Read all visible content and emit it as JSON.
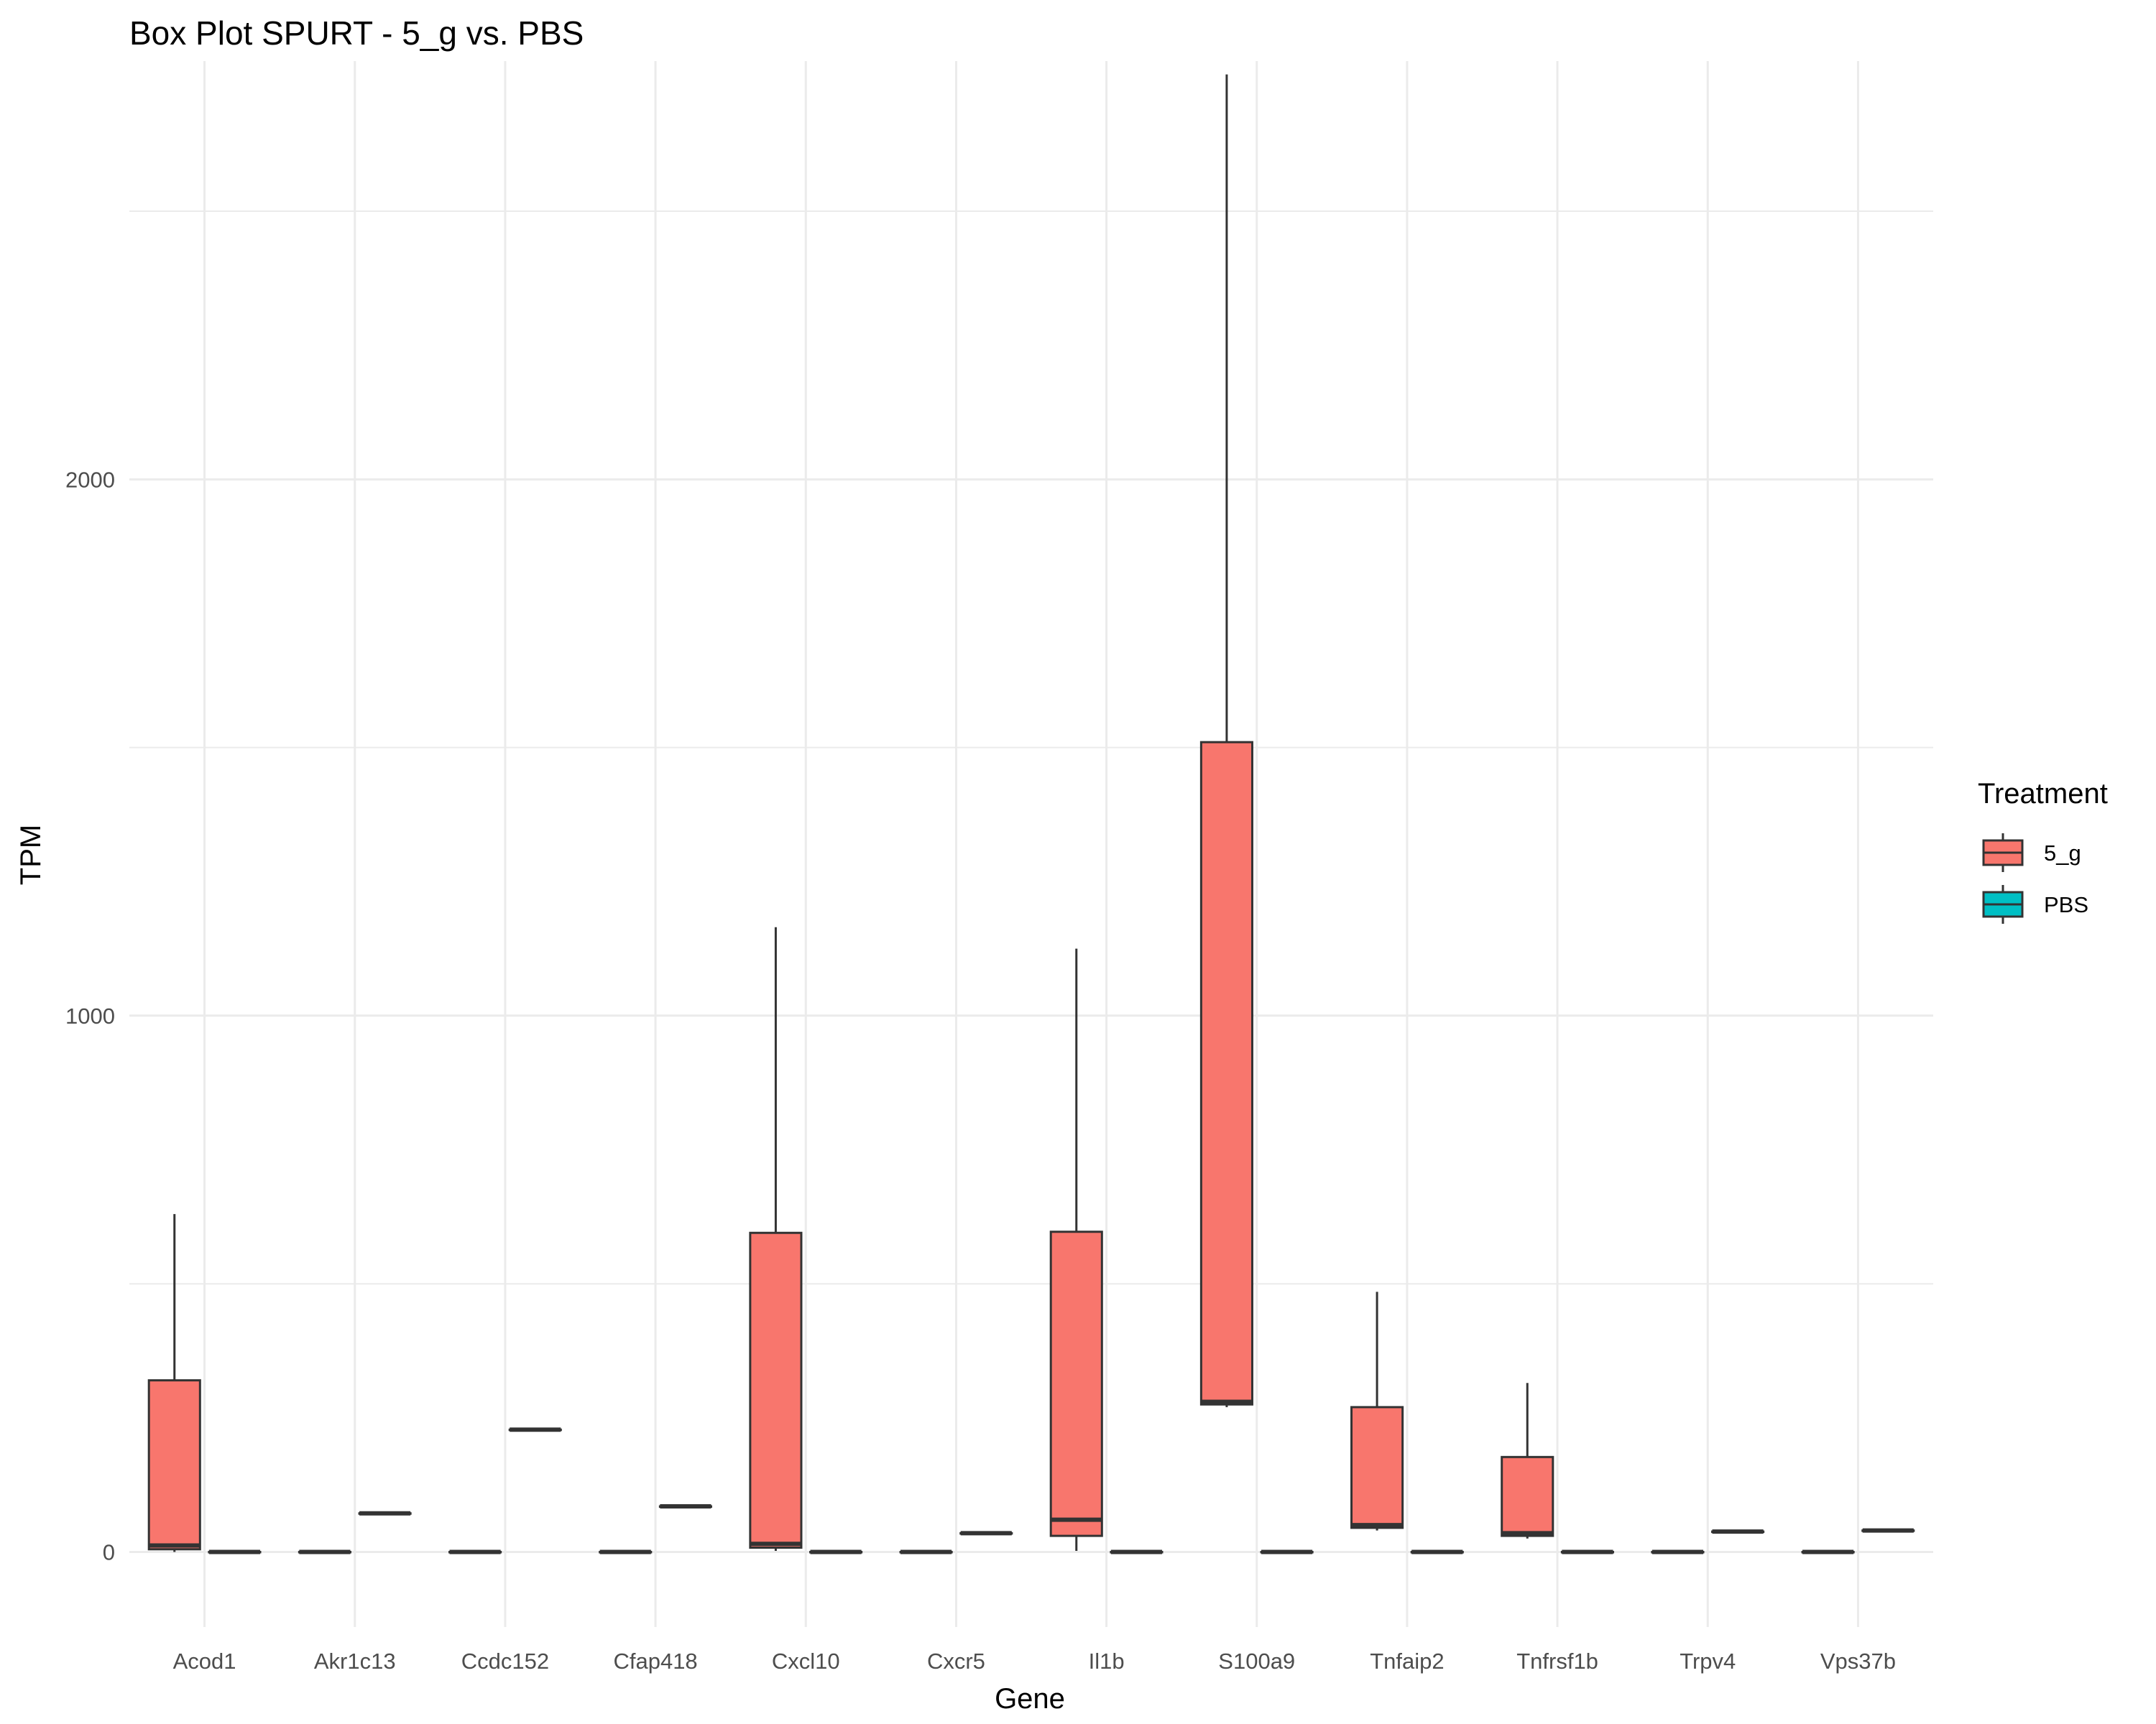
{
  "chart_data": {
    "type": "box",
    "title": "Box Plot SPURT - 5_g vs. PBS",
    "xlabel": "Gene",
    "ylabel": "TPM",
    "ylim": [
      -140,
      2780
    ],
    "yticks": [
      0,
      1000,
      2000
    ],
    "grid": true,
    "legend": {
      "title": "Treatment",
      "position": "right"
    },
    "categories": [
      "Acod1",
      "Akr1c13",
      "Ccdc152",
      "Cfap418",
      "Cxcl10",
      "Cxcr5",
      "Il1b",
      "S100a9",
      "Tnfaip2",
      "Tnfrsf1b",
      "Trpv4",
      "Vps37b"
    ],
    "series": [
      {
        "name": "5_g",
        "color": "#F8766D",
        "boxes": [
          {
            "min": 0,
            "q1": 5,
            "median": 12,
            "q3": 320,
            "max": 630
          },
          {
            "min": 0,
            "q1": 0,
            "median": 0,
            "q3": 0,
            "max": 0
          },
          {
            "min": 0,
            "q1": 0,
            "median": 0,
            "q3": 0,
            "max": 0
          },
          {
            "min": 0,
            "q1": 0,
            "median": 0,
            "q3": 0,
            "max": 0
          },
          {
            "min": 2,
            "q1": 8,
            "median": 15,
            "q3": 595,
            "max": 1165
          },
          {
            "min": 0,
            "q1": 0,
            "median": 0,
            "q3": 0,
            "max": 0
          },
          {
            "min": 2,
            "q1": 30,
            "median": 60,
            "q3": 597,
            "max": 1125
          },
          {
            "min": 270,
            "q1": 275,
            "median": 280,
            "q3": 1510,
            "max": 2755
          },
          {
            "min": 40,
            "q1": 45,
            "median": 50,
            "q3": 270,
            "max": 485
          },
          {
            "min": 25,
            "q1": 30,
            "median": 35,
            "q3": 177,
            "max": 315
          },
          {
            "min": 0,
            "q1": 0,
            "median": 0,
            "q3": 0,
            "max": 0
          },
          {
            "min": 0,
            "q1": 0,
            "median": 0,
            "q3": 0,
            "max": 0
          }
        ]
      },
      {
        "name": "PBS",
        "color": "#00BFC4",
        "boxes": [
          {
            "min": 0,
            "q1": 0,
            "median": 0,
            "q3": 0,
            "max": 0
          },
          {
            "min": 72,
            "q1": 72,
            "median": 72,
            "q3": 72,
            "max": 72
          },
          {
            "min": 228,
            "q1": 228,
            "median": 228,
            "q3": 228,
            "max": 228
          },
          {
            "min": 85,
            "q1": 85,
            "median": 85,
            "q3": 85,
            "max": 85
          },
          {
            "min": 0,
            "q1": 0,
            "median": 0,
            "q3": 0,
            "max": 0
          },
          {
            "min": 35,
            "q1": 35,
            "median": 35,
            "q3": 35,
            "max": 35
          },
          {
            "min": 0,
            "q1": 0,
            "median": 0,
            "q3": 0,
            "max": 0
          },
          {
            "min": 0,
            "q1": 0,
            "median": 0,
            "q3": 0,
            "max": 0
          },
          {
            "min": 0,
            "q1": 0,
            "median": 0,
            "q3": 0,
            "max": 0
          },
          {
            "min": 0,
            "q1": 0,
            "median": 0,
            "q3": 0,
            "max": 0
          },
          {
            "min": 38,
            "q1": 38,
            "median": 38,
            "q3": 38,
            "max": 38
          },
          {
            "min": 40,
            "q1": 40,
            "median": 40,
            "q3": 40,
            "max": 40
          }
        ]
      }
    ]
  }
}
